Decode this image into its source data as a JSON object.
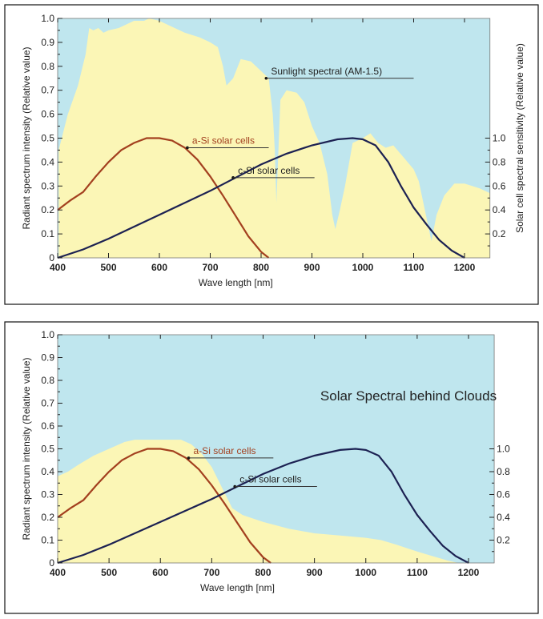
{
  "chart_data": [
    {
      "type": "area",
      "xlabel": "Wave length [nm]",
      "ylabel": "Radiant spectrum intensity (Relative value)",
      "ylabel_right": "Solar cell spectral sensitivity (Relative value)",
      "xlim": [
        400,
        1250
      ],
      "ylim": [
        0,
        1.0
      ],
      "ylim_right": [
        0,
        2.0
      ],
      "xticks": [
        "400",
        "500",
        "600",
        "700",
        "800",
        "900",
        "1000",
        "1100",
        "1200"
      ],
      "yticks": [
        "0",
        "0.1",
        "0.2",
        "0.3",
        "0.4",
        "0.5",
        "0.6",
        "0.7",
        "0.8",
        "0.9",
        "1.0"
      ],
      "yticks_right": [
        "0.2",
        "0.4",
        "0.6",
        "0.8",
        "1.0"
      ],
      "colors": {
        "background": "#bfe6ee",
        "spectrum": "#fbf6b6",
        "a_si": "#a3401f",
        "c_si": "#1c2152"
      },
      "spectrum": {
        "label": "Sunlight spectral (AM-1.5)",
        "x": [
          402,
          420,
          440,
          455,
          462,
          470,
          480,
          490,
          500,
          520,
          550,
          570,
          580,
          600,
          620,
          650,
          680,
          700,
          715,
          725,
          732,
          745,
          760,
          780,
          800,
          815,
          823,
          827,
          830,
          838,
          850,
          870,
          885,
          900,
          915,
          930,
          940,
          946,
          955,
          965,
          980,
          1000,
          1015,
          1030,
          1045,
          1060,
          1080,
          1100,
          1110,
          1120,
          1130,
          1135,
          1145,
          1160,
          1180,
          1200,
          1230,
          1250
        ],
        "y": [
          0.45,
          0.6,
          0.72,
          0.85,
          0.96,
          0.95,
          0.96,
          0.94,
          0.95,
          0.96,
          0.99,
          0.99,
          1.0,
          0.99,
          0.97,
          0.94,
          0.92,
          0.9,
          0.88,
          0.8,
          0.72,
          0.75,
          0.83,
          0.82,
          0.78,
          0.75,
          0.6,
          0.45,
          0.23,
          0.66,
          0.7,
          0.69,
          0.65,
          0.55,
          0.48,
          0.35,
          0.18,
          0.12,
          0.2,
          0.3,
          0.48,
          0.5,
          0.52,
          0.48,
          0.46,
          0.47,
          0.42,
          0.37,
          0.32,
          0.22,
          0.12,
          0.07,
          0.18,
          0.26,
          0.31,
          0.31,
          0.29,
          0.27
        ]
      },
      "series": [
        {
          "name": "a-Si solar cells",
          "x": [
            400,
            425,
            450,
            475,
            500,
            525,
            550,
            575,
            600,
            625,
            650,
            675,
            700,
            725,
            750,
            775,
            800,
            815
          ],
          "y": [
            0.4,
            0.48,
            0.55,
            0.68,
            0.8,
            0.9,
            0.96,
            1.0,
            1.0,
            0.98,
            0.92,
            0.82,
            0.68,
            0.52,
            0.35,
            0.18,
            0.05,
            0.0
          ]
        },
        {
          "name": "c-Si solar cells",
          "x": [
            400,
            450,
            500,
            550,
            600,
            650,
            700,
            750,
            800,
            850,
            900,
            950,
            980,
            1000,
            1025,
            1050,
            1075,
            1100,
            1125,
            1150,
            1175,
            1200
          ],
          "y": [
            0.0,
            0.07,
            0.16,
            0.26,
            0.36,
            0.46,
            0.56,
            0.67,
            0.78,
            0.87,
            0.94,
            0.99,
            1.0,
            0.99,
            0.94,
            0.8,
            0.6,
            0.42,
            0.28,
            0.15,
            0.06,
            0.0
          ]
        }
      ]
    },
    {
      "type": "area",
      "title": "Solar Spectral behind Clouds",
      "xlabel": "Wave length [nm]",
      "ylabel": "Radiant spectrum intensity (Relative value)",
      "ylabel_right": "Solar cell spectral sensitivity (Relative value)",
      "xlim": [
        400,
        1250
      ],
      "ylim": [
        0,
        1.0
      ],
      "ylim_right": [
        0,
        2.0
      ],
      "xticks": [
        "400",
        "500",
        "600",
        "700",
        "800",
        "900",
        "1000",
        "1100",
        "1200"
      ],
      "yticks": [
        "0",
        "0.1",
        "0.2",
        "0.3",
        "0.4",
        "0.5",
        "0.6",
        "0.7",
        "0.8",
        "0.9",
        "1.0"
      ],
      "yticks_right": [
        "0.2",
        "0.4",
        "0.6",
        "0.8",
        "1.0"
      ],
      "colors": {
        "background": "#bfe6ee",
        "spectrum": "#fbf6b6",
        "a_si": "#a3401f",
        "c_si": "#1c2152"
      },
      "spectrum": {
        "x": [
          400,
          420,
          440,
          470,
          500,
          530,
          550,
          580,
          610,
          640,
          660,
          680,
          700,
          720,
          740,
          760,
          800,
          850,
          900,
          950,
          1000,
          1030,
          1060,
          1100,
          1130,
          1160,
          1180
        ],
        "y": [
          0.38,
          0.4,
          0.43,
          0.47,
          0.5,
          0.53,
          0.54,
          0.54,
          0.54,
          0.54,
          0.52,
          0.48,
          0.42,
          0.33,
          0.24,
          0.21,
          0.18,
          0.15,
          0.13,
          0.12,
          0.11,
          0.1,
          0.08,
          0.05,
          0.03,
          0.01,
          0.0
        ]
      },
      "series": [
        {
          "name": "a-Si solar cells",
          "x": [
            400,
            425,
            450,
            475,
            500,
            525,
            550,
            575,
            600,
            625,
            650,
            675,
            700,
            725,
            750,
            775,
            800,
            815
          ],
          "y": [
            0.4,
            0.48,
            0.55,
            0.68,
            0.8,
            0.9,
            0.96,
            1.0,
            1.0,
            0.98,
            0.92,
            0.82,
            0.68,
            0.52,
            0.35,
            0.18,
            0.05,
            0.0
          ]
        },
        {
          "name": "c-Si solar cells",
          "x": [
            400,
            450,
            500,
            550,
            600,
            650,
            700,
            750,
            800,
            850,
            900,
            950,
            980,
            1000,
            1025,
            1050,
            1075,
            1100,
            1125,
            1150,
            1175,
            1200
          ],
          "y": [
            0.0,
            0.07,
            0.16,
            0.26,
            0.36,
            0.46,
            0.56,
            0.67,
            0.78,
            0.87,
            0.94,
            0.99,
            1.0,
            0.99,
            0.94,
            0.8,
            0.6,
            0.42,
            0.28,
            0.15,
            0.06,
            0.0
          ]
        }
      ]
    }
  ]
}
